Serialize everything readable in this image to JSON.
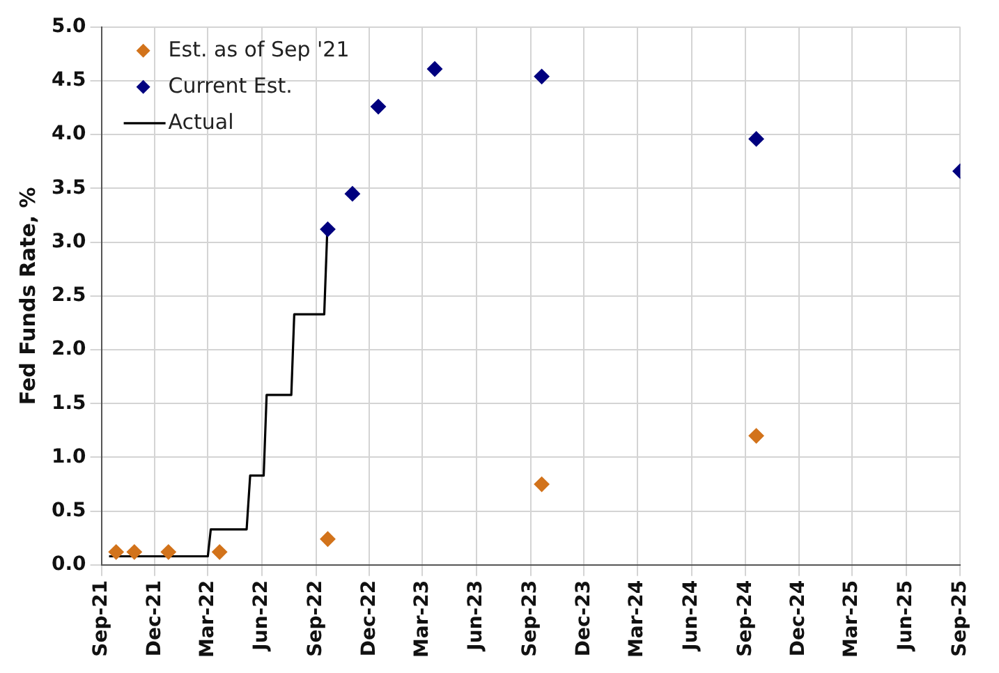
{
  "chart_data": {
    "type": "scatter",
    "ylabel": "Fed Funds Rate, %",
    "xlim": [
      "2021-09",
      "2025-09"
    ],
    "xticks": [
      {
        "value": "2021-09",
        "label": "Sep-21"
      },
      {
        "value": "2021-12",
        "label": "Dec-21"
      },
      {
        "value": "2022-03",
        "label": "Mar-22"
      },
      {
        "value": "2022-06",
        "label": "Jun-22"
      },
      {
        "value": "2022-09",
        "label": "Sep-22"
      },
      {
        "value": "2022-12",
        "label": "Dec-22"
      },
      {
        "value": "2023-03",
        "label": "Mar-23"
      },
      {
        "value": "2023-06",
        "label": "Jun-23"
      },
      {
        "value": "2023-09",
        "label": "Sep-23"
      },
      {
        "value": "2023-12",
        "label": "Dec-23"
      },
      {
        "value": "2024-03",
        "label": "Mar-24"
      },
      {
        "value": "2024-06",
        "label": "Jun-24"
      },
      {
        "value": "2024-09",
        "label": "Sep-24"
      },
      {
        "value": "2024-12",
        "label": "Dec-24"
      },
      {
        "value": "2025-03",
        "label": "Mar-25"
      },
      {
        "value": "2025-06",
        "label": "Jun-25"
      },
      {
        "value": "2025-09",
        "label": "Sep-25"
      }
    ],
    "ylim": [
      0,
      5
    ],
    "yticks": [
      {
        "value": 0,
        "label": "0.0"
      },
      {
        "value": 0.5,
        "label": "0.5"
      },
      {
        "value": 1,
        "label": "1.0"
      },
      {
        "value": 1.5,
        "label": "1.5"
      },
      {
        "value": 2,
        "label": "2.0"
      },
      {
        "value": 2.5,
        "label": "2.5"
      },
      {
        "value": 3,
        "label": "3.0"
      },
      {
        "value": 3.5,
        "label": "3.5"
      },
      {
        "value": 4,
        "label": "4.0"
      },
      {
        "value": 4.5,
        "label": "4.5"
      },
      {
        "value": 5,
        "label": "5.0"
      }
    ],
    "grid": true,
    "legend": "top left",
    "marker": "diamond",
    "series": [
      {
        "name": "Est. as of Sep '21",
        "color": "#d2731b",
        "x": [
          "2021-09-26",
          "2021-10-27",
          "2021-12-24",
          "2022-03-21",
          "2022-09-21",
          "2023-09-20",
          "2024-09-19"
        ],
        "values": [
          0.12,
          0.12,
          0.12,
          0.12,
          0.24,
          0.75,
          1.2
        ]
      },
      {
        "name": "Current Est.",
        "color": "#00007f",
        "x": [
          "2022-09-21",
          "2022-11-02",
          "2022-12-16",
          "2023-03-22",
          "2023-09-20",
          "2024-09-19",
          "2025-09-01"
        ],
        "values": [
          3.12,
          3.45,
          4.26,
          4.61,
          4.54,
          3.96,
          3.66
        ]
      },
      {
        "name": "Actual",
        "type": "line",
        "marker": "none",
        "line_style": "solid",
        "color": "#000000",
        "x": [
          "2021-09-14",
          "2022-03-01",
          "2022-03-06",
          "2022-05-06",
          "2022-05-12",
          "2022-06-04",
          "2022-06-09",
          "2022-07-21",
          "2022-07-26",
          "2022-09-15",
          "2022-09-20"
        ],
        "values": [
          0.08,
          0.08,
          0.33,
          0.33,
          0.83,
          0.83,
          1.58,
          1.58,
          2.33,
          2.33,
          3.08
        ]
      }
    ]
  }
}
